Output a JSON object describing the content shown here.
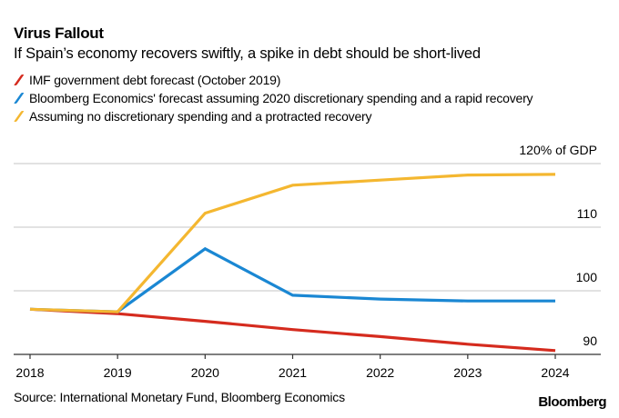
{
  "header": {
    "title": "Virus Fallout",
    "subtitle": "If Spain’s economy recovers swiftly, a spike in debt should be short-lived"
  },
  "footer": {
    "source": "Source: International Monetary Fund, Bloomberg Economics",
    "brand": "Bloomberg"
  },
  "chart_data": {
    "type": "line",
    "title": "Virus Fallout",
    "subtitle": "If Spain’s economy recovers swiftly, a spike in debt should be short-lived",
    "xlabel": "",
    "ylabel": "% of GDP",
    "x": [
      "2018",
      "2019",
      "2020",
      "2021",
      "2022",
      "2023",
      "2024"
    ],
    "ylim": [
      90,
      120
    ],
    "yticks": [
      90,
      100,
      110,
      120
    ],
    "ytick_labels": [
      "90",
      "100",
      "110",
      "120% of GDP"
    ],
    "y_axis_side": "right",
    "grid": true,
    "legend_position": "top-left",
    "series": [
      {
        "name": "IMF government debt forecast (October 2019)",
        "color": "#d52b1e",
        "values": [
          97.1,
          96.4,
          95.2,
          93.9,
          92.8,
          91.6,
          90.6
        ]
      },
      {
        "name": "Bloomberg Economics' forecast assuming 2020 discretionary spending and a rapid recovery",
        "color": "#1a87d3",
        "values": [
          97.1,
          96.7,
          106.6,
          99.3,
          98.7,
          98.4,
          98.4
        ]
      },
      {
        "name": "Assuming no discretionary spending and a protracted recovery",
        "color": "#f4b730",
        "values": [
          97.1,
          96.7,
          112.2,
          116.6,
          117.4,
          118.2,
          118.3
        ]
      }
    ]
  }
}
